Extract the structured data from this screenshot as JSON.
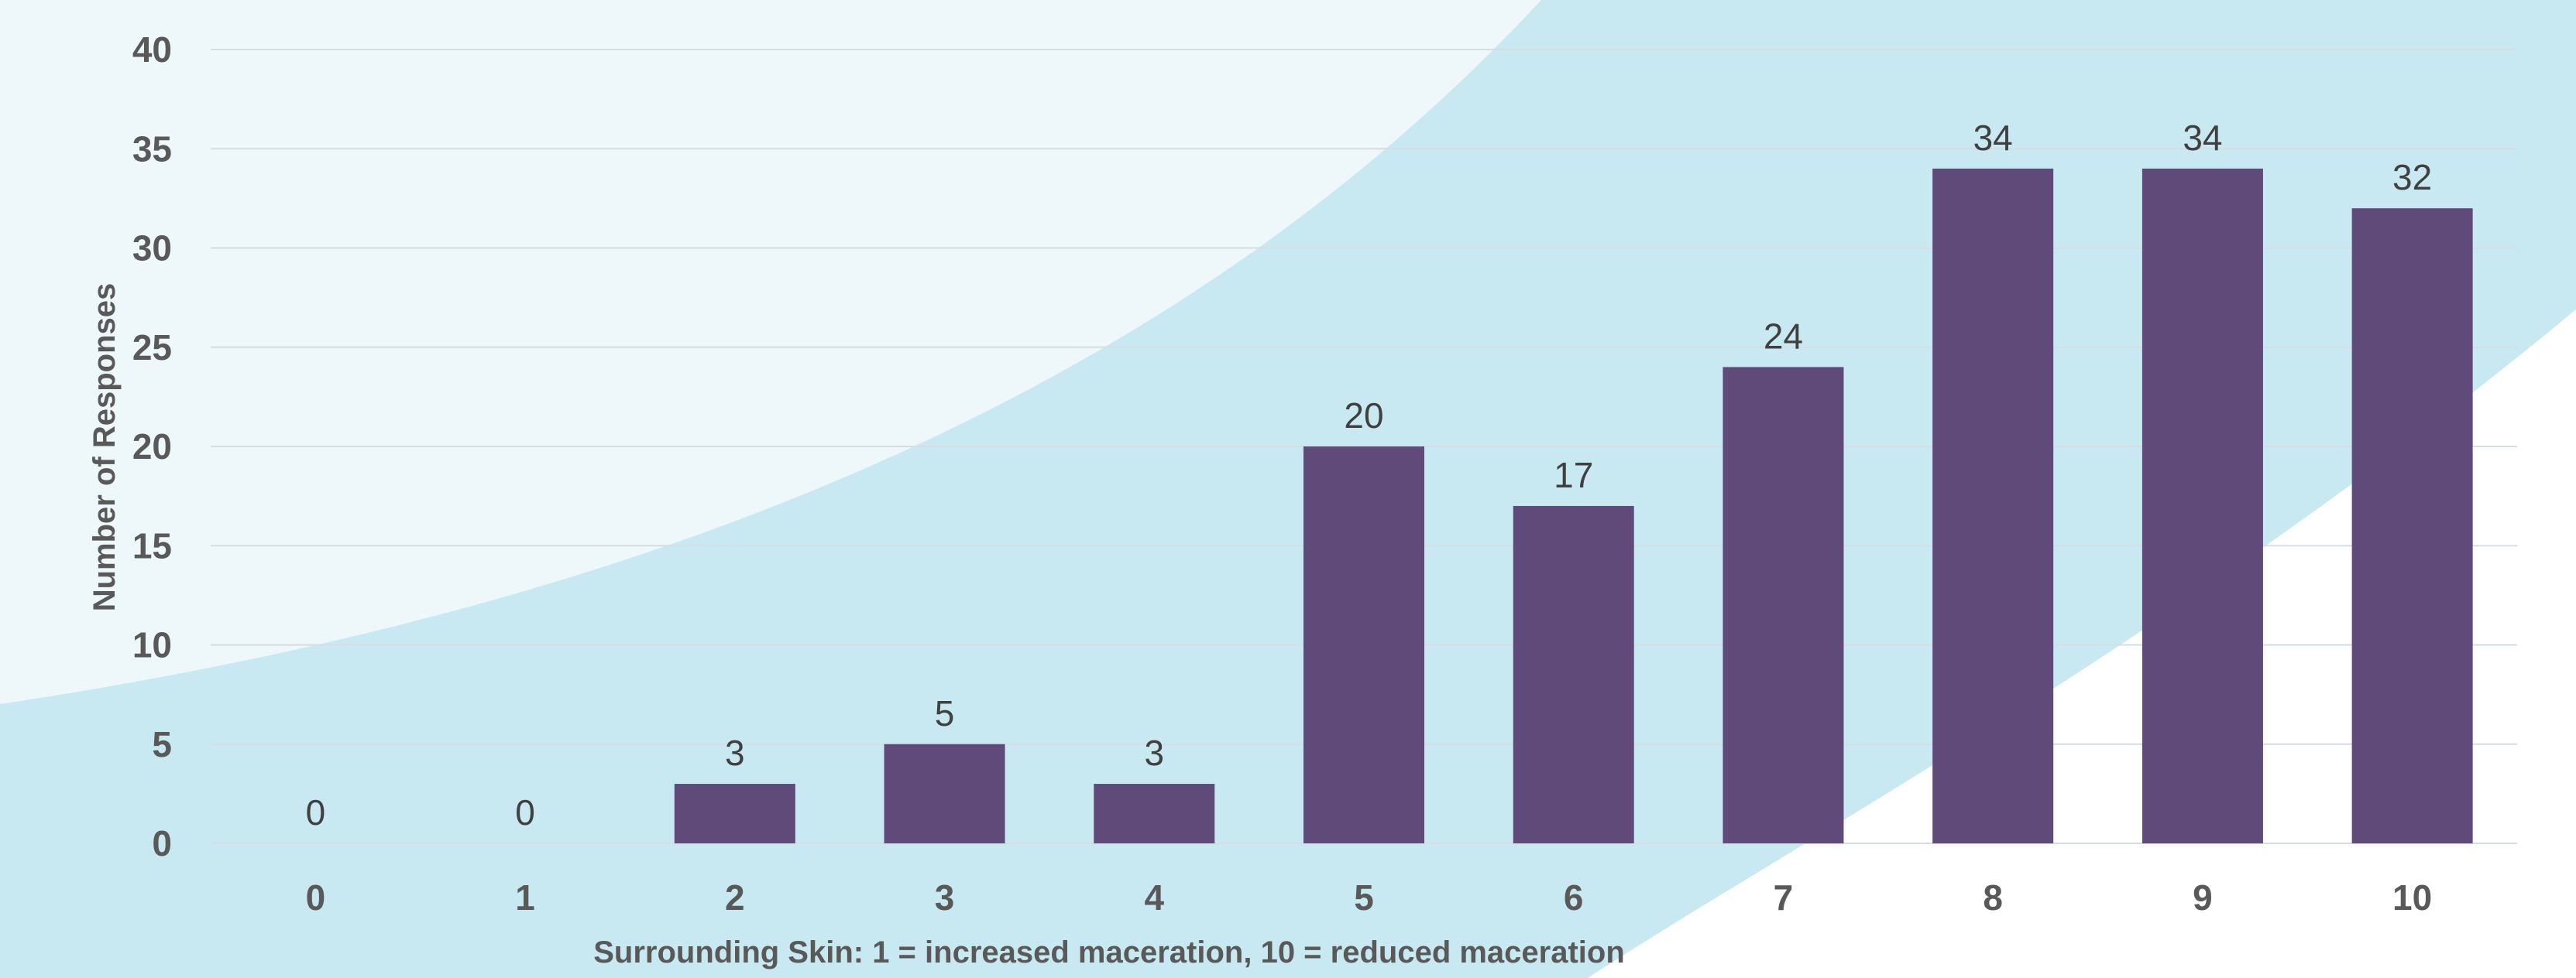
{
  "chart_data": {
    "type": "bar",
    "title": "",
    "xlabel": "Surrounding Skin: 1 = increased maceration, 10 = reduced maceration",
    "ylabel": "Number of Responses",
    "categories": [
      "0",
      "1",
      "2",
      "3",
      "4",
      "5",
      "6",
      "7",
      "8",
      "9",
      "10"
    ],
    "values": [
      0,
      0,
      3,
      5,
      3,
      20,
      17,
      24,
      34,
      34,
      32
    ],
    "ylim": [
      0,
      40
    ],
    "yticks": [
      0,
      5,
      10,
      15,
      20,
      25,
      30,
      35,
      40
    ],
    "grid": true,
    "legend": "none",
    "data_labels": true
  },
  "colors": {
    "bar": "#5f4a7a",
    "grid": "#d6dde2",
    "background_light": "#eef7fa",
    "background_band": "#c8e9f1"
  }
}
